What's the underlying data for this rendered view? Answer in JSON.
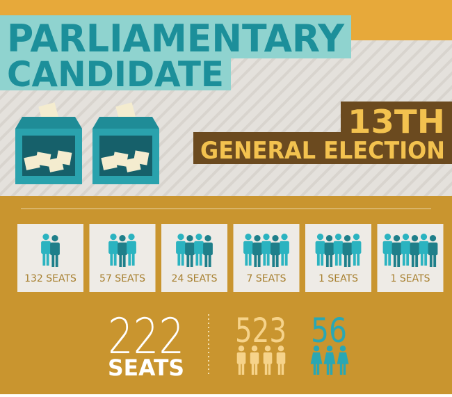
{
  "header": {
    "title_lines": [
      "PARLIAMENTARY",
      "CANDIDATE"
    ]
  },
  "election": {
    "number": "13TH",
    "name": "GENERAL ELECTION"
  },
  "seats": {
    "boxes": [
      {
        "label": "132 SEATS"
      },
      {
        "label": "57 SEATS"
      },
      {
        "label": "24 SEATS"
      },
      {
        "label": "7 SEATS"
      },
      {
        "label": "1 SEATS"
      },
      {
        "label": "1 SEATS"
      }
    ]
  },
  "totals": {
    "seats": {
      "value": 222,
      "label": "SEATS"
    },
    "male": 523,
    "female": 56
  }
}
